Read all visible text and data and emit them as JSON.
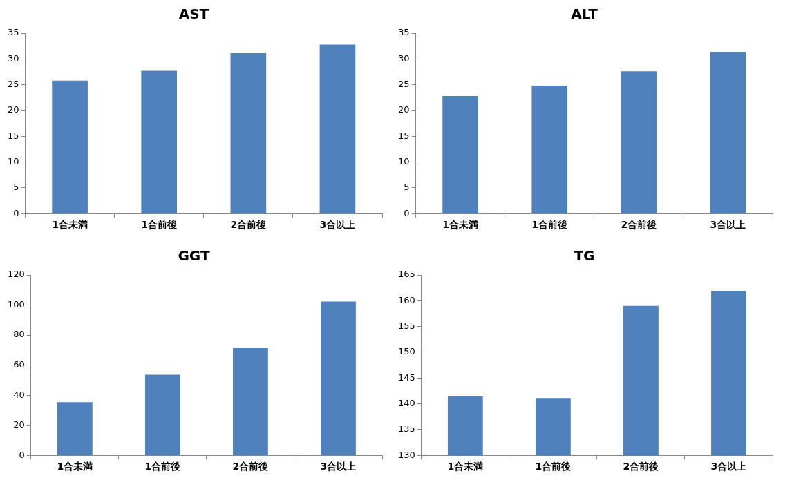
{
  "chart_data": [
    {
      "type": "bar",
      "title": "AST",
      "categories": [
        "1合未満",
        "1合前後",
        "2合前後",
        "3合以上"
      ],
      "values": [
        25.8,
        27.7,
        31.1,
        32.8
      ],
      "color": "#4f81bd",
      "ylim": [
        0,
        35
      ],
      "yticks": [
        0,
        5,
        10,
        15,
        20,
        25,
        30,
        35
      ]
    },
    {
      "type": "bar",
      "title": "ALT",
      "categories": [
        "1合未満",
        "1合前後",
        "2合前後",
        "3合以上"
      ],
      "values": [
        22.8,
        24.8,
        27.6,
        31.3
      ],
      "color": "#4f81bd",
      "ylim": [
        0,
        35
      ],
      "yticks": [
        0,
        5,
        10,
        15,
        20,
        25,
        30,
        35
      ]
    },
    {
      "type": "bar",
      "title": "GGT",
      "categories": [
        "1合未満",
        "1合前後",
        "2合前後",
        "3合以上"
      ],
      "values": [
        35.3,
        53.6,
        71.3,
        102.3
      ],
      "color": "#4f81bd",
      "ylim": [
        0,
        120
      ],
      "yticks": [
        0,
        20,
        40,
        60,
        80,
        100,
        120
      ]
    },
    {
      "type": "bar",
      "title": "TG",
      "categories": [
        "1合未満",
        "1合前後",
        "2合前後",
        "3合以上"
      ],
      "values": [
        141.4,
        141.1,
        159.0,
        161.9
      ],
      "color": "#4f81bd",
      "ylim": [
        130,
        165
      ],
      "yticks": [
        130,
        135,
        140,
        145,
        150,
        155,
        160,
        165
      ]
    }
  ]
}
